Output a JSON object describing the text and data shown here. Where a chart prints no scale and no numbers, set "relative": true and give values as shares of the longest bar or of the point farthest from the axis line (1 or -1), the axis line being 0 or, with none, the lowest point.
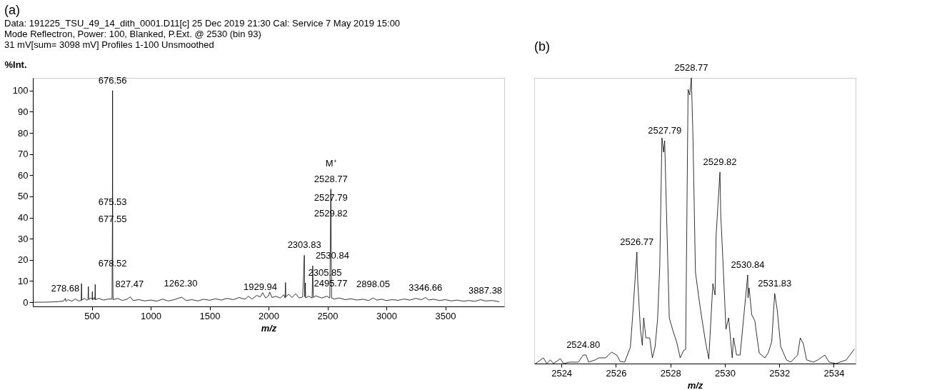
{
  "chart_data": [
    {
      "type": "line",
      "title": "(a)",
      "xlabel": "m/z",
      "ylabel": "%Int.",
      "annotations": [
        "Data: 191225_TSU_49_14_dith_0001.D11[c] 25 Dec 2019 21:30 Cal: Service 7 May 2019 15:00",
        "Mode Reflectron, Power: 100, Blanked, P.Ext. @ 2530 (bin 93)",
        "31 mV[sum= 3098 mV]  Profiles 1-100 Unsmoothed",
        {
          "text": "676.56",
          "x": 676.56,
          "y": 100
        },
        {
          "text": "675.53",
          "x": 676.56,
          "y": 42.4
        },
        {
          "text": "677.55",
          "x": 676.56,
          "y": 34.6
        },
        {
          "text": "678.52",
          "x": 676.56,
          "y": 13.4
        },
        {
          "text": "278.68",
          "x": 275,
          "y": 1.8
        },
        {
          "text": "827.47",
          "x": 820,
          "y": 3.7
        },
        {
          "text": "1262.30",
          "x": 1255,
          "y": 4
        },
        {
          "text": "1929.94",
          "x": 1930,
          "y": 2.5
        },
        {
          "text": "2303.83",
          "x": 2303.83,
          "y": 22.2
        },
        {
          "text": "2305.85",
          "x": 2312,
          "y": 9.1
        },
        {
          "text": "2530.84",
          "x": 2375,
          "y": 17.2
        },
        {
          "text": "2528.77",
          "x": 2528.77,
          "y": 53.5
        },
        {
          "text": "M⁺",
          "x": 2528.77,
          "y": 53.5
        },
        {
          "text": "2527.79",
          "x": 2528.77,
          "y": 44.6
        },
        {
          "text": "2529.82",
          "x": 2528.77,
          "y": 37.3
        },
        {
          "text": "2495.77",
          "x": 2527,
          "y": 4
        },
        {
          "text": "2898.05",
          "x": 2888,
          "y": 3.7
        },
        {
          "text": "3346.66",
          "x": 3332,
          "y": 2.2
        },
        {
          "text": "3887.38",
          "x": 3840,
          "y": 0.6
        }
      ],
      "xlim": [
        0,
        4000
      ],
      "xticks": [
        500,
        1000,
        1500,
        2000,
        2500,
        3000,
        3500
      ],
      "ylim": [
        -2,
        106
      ],
      "yticks": [
        0,
        10,
        20,
        30,
        40,
        50,
        60,
        70,
        80,
        90,
        100
      ],
      "series": [
        {
          "color": "#000000",
          "x": [
            0,
            100,
            200,
            260,
            275,
            280,
            300,
            330,
            360,
            390,
            410,
            413,
            416,
            440,
            460,
            468,
            471,
            474,
            490,
            503,
            505,
            507,
            520,
            527,
            529,
            531,
            560,
            600,
            640,
            672,
            675.53,
            676.56,
            677.55,
            678.52,
            681,
            720,
            760,
            800,
            827,
            850,
            900,
            950,
            1000,
            1050,
            1100,
            1150,
            1200,
            1262,
            1300,
            1350,
            1400,
            1450,
            1500,
            1550,
            1600,
            1650,
            1700,
            1750,
            1800,
            1830,
            1860,
            1900,
            1930,
            1950,
            1975,
            2000,
            2010,
            2030,
            2060,
            2100,
            2130,
            2141,
            2144,
            2147,
            2170,
            2200,
            2230,
            2260,
            2290,
            2303.83,
            2307,
            2309,
            2312,
            2315,
            2340,
            2370,
            2375,
            2380,
            2400,
            2450,
            2495,
            2520,
            2528.77,
            2535,
            2560,
            2600,
            2650,
            2700,
            2750,
            2800,
            2850,
            2888,
            2920,
            2960,
            3000,
            3050,
            3100,
            3150,
            3200,
            3250,
            3300,
            3332,
            3360,
            3400,
            3450,
            3500,
            3550,
            3600,
            3650,
            3700,
            3750,
            3800,
            3840,
            3900,
            3957
          ],
          "values": [
            0,
            0,
            0.2,
            0.5,
            1.8,
            0.4,
            1.2,
            0.5,
            1.5,
            0.6,
            0.8,
            8.8,
            1.0,
            1.8,
            0.9,
            1.5,
            7.4,
            1.2,
            2.0,
            1.5,
            5,
            1.0,
            2.2,
            1.2,
            8.4,
            1.2,
            1.8,
            1.0,
            1.5,
            1.5,
            40,
            100,
            35,
            12,
            1.2,
            1.8,
            0.8,
            1.5,
            2.5,
            0.8,
            1.2,
            0.6,
            1.0,
            0.5,
            1.4,
            0.6,
            1.2,
            2.4,
            0.8,
            1.2,
            0.6,
            1.4,
            0.9,
            1.6,
            1.0,
            1.8,
            1.2,
            2.2,
            1.4,
            2.8,
            1.5,
            3.2,
            2.5,
            4.5,
            2.0,
            3.0,
            4.8,
            2.2,
            2.8,
            2.0,
            3.5,
            2.0,
            9.3,
            2.5,
            3.8,
            2.2,
            4.0,
            2.0,
            2.5,
            22.2,
            3.0,
            2.5,
            9.1,
            2.0,
            2.8,
            2.0,
            17.2,
            2.2,
            3.0,
            2.0,
            2.8,
            2.0,
            53.5,
            2.0,
            1.5,
            2.0,
            1.2,
            1.6,
            1.0,
            1.4,
            0.8,
            2.0,
            1.0,
            1.4,
            0.8,
            1.2,
            0.9,
            1.5,
            1.0,
            1.8,
            1.2,
            2.2,
            1.0,
            1.4,
            0.8,
            1.2,
            0.6,
            1.0,
            0.5,
            0.8,
            0.4,
            1.2,
            0.6,
            0.8,
            0.2
          ]
        }
      ]
    },
    {
      "type": "line",
      "title": "(b)",
      "xlabel": "m/z",
      "relative": true,
      "xlim": [
        2523.0,
        2534.8
      ],
      "xticks": [
        2524,
        2526,
        2528,
        2530,
        2532,
        2534
      ],
      "annotations": [
        {
          "text": "2524.80",
          "x": 2524.8,
          "y": 0.03
        },
        {
          "text": "2526.77",
          "x": 2526.77,
          "y": 0.39
        },
        {
          "text": "2527.79",
          "x": 2527.79,
          "y": 0.78
        },
        {
          "text": "2528.77",
          "x": 2528.77,
          "y": 1.0
        },
        {
          "text": "2529.82",
          "x": 2529.82,
          "y": 0.67
        },
        {
          "text": "2530.84",
          "x": 2530.84,
          "y": 0.31
        },
        {
          "text": "2531.83",
          "x": 2531.83,
          "y": 0.245
        }
      ],
      "series": [
        {
          "color": "#000000",
          "x": [
            2523.05,
            2523.34,
            2523.46,
            2523.59,
            2523.71,
            2523.96,
            2524.08,
            2524.29,
            2524.62,
            2524.8,
            2524.9,
            2525.0,
            2525.24,
            2525.37,
            2525.62,
            2525.84,
            2526.03,
            2526.16,
            2526.32,
            2526.53,
            2526.61,
            2526.77,
            2526.8,
            2526.9,
            2526.97,
            2527.02,
            2527.1,
            2527.24,
            2527.34,
            2527.44,
            2527.53,
            2527.61,
            2527.69,
            2527.75,
            2527.79,
            2527.86,
            2527.96,
            2528.11,
            2528.23,
            2528.36,
            2528.48,
            2528.56,
            2528.65,
            2528.71,
            2528.77,
            2528.83,
            2528.92,
            2529.06,
            2529.16,
            2529.29,
            2529.41,
            2529.56,
            2529.64,
            2529.68,
            2529.82,
            2529.85,
            2529.93,
            2530.04,
            2530.14,
            2530.27,
            2530.32,
            2530.43,
            2530.56,
            2530.68,
            2530.84,
            2530.85,
            2530.89,
            2530.99,
            2531.1,
            2531.26,
            2531.47,
            2531.59,
            2531.72,
            2531.83,
            2531.92,
            2532.05,
            2532.26,
            2532.42,
            2532.67,
            2532.77,
            2532.88,
            2533.0,
            2533.25,
            2533.42,
            2533.67,
            2533.83,
            2534.08,
            2534.46,
            2534.75
          ],
          "values": [
            0,
            0.02,
            0,
            0.013,
            0,
            0.017,
            0,
            0.005,
            0.005,
            0.03,
            0.03,
            0.005,
            0.013,
            0.02,
            0.02,
            0.04,
            0.03,
            0.007,
            0.005,
            0.057,
            0.16,
            0.39,
            0.29,
            0.12,
            0.064,
            0.16,
            0.09,
            0.09,
            0.02,
            0.06,
            0.155,
            0.34,
            0.79,
            0.74,
            0.78,
            0.52,
            0.16,
            0.11,
            0.076,
            0.02,
            0.045,
            0.05,
            0.96,
            0.94,
            1.0,
            0.79,
            0.32,
            0.22,
            0.155,
            0.076,
            0.016,
            0.28,
            0.24,
            0.45,
            0.67,
            0.52,
            0.36,
            0.12,
            0.16,
            0.02,
            0.09,
            0.03,
            0.03,
            0.15,
            0.31,
            0.23,
            0.265,
            0.17,
            0.15,
            0.037,
            0.02,
            0.037,
            0.076,
            0.245,
            0.19,
            0.06,
            0.013,
            0.005,
            0.03,
            0.09,
            0.07,
            0.013,
            0.005,
            0.013,
            0.03,
            0.005,
            0,
            0.013,
            0.05
          ]
        }
      ]
    }
  ]
}
